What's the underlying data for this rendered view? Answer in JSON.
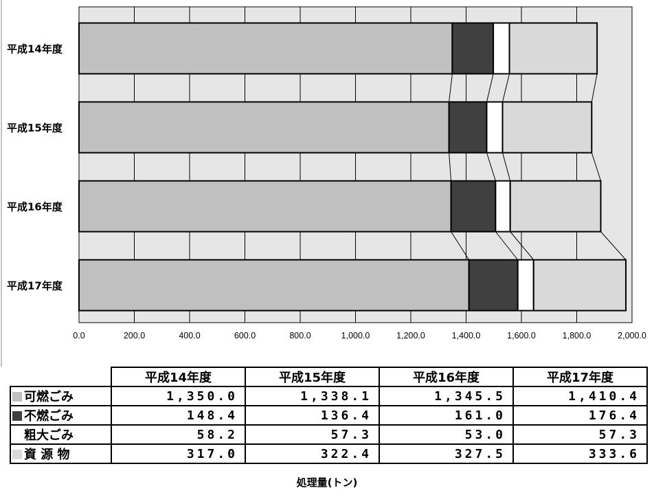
{
  "chart_data": {
    "type": "bar",
    "stacked": true,
    "orientation": "horizontal",
    "categories": [
      "平成14年度",
      "平成15年度",
      "平成16年度",
      "平成17年度"
    ],
    "series": [
      {
        "name": "可燃ごみ",
        "values": [
          1350.0,
          1338.1,
          1345.5,
          1410.4
        ],
        "color": "#c0c0c0"
      },
      {
        "name": "不燃ごみ",
        "values": [
          148.4,
          136.4,
          161.0,
          176.4
        ],
        "color": "#404040"
      },
      {
        "name": "粗大ごみ",
        "values": [
          58.2,
          57.3,
          53.0,
          57.3
        ],
        "color": "#ffffff"
      },
      {
        "name": "資 源 物",
        "values": [
          317.0,
          322.4,
          327.5,
          333.6
        ],
        "color": "#d9d9d9"
      }
    ],
    "xlim": [
      0,
      2000
    ],
    "xticks": [
      "0.0",
      "200.0",
      "400.0",
      "600.0",
      "800.0",
      "1,000.0",
      "1,200.0",
      "1,400.0",
      "1,600.0",
      "1,800.0",
      "2,000.0"
    ],
    "xlabel": "処理量(トン)",
    "grid": true,
    "plot_background": "#e6e6e6"
  },
  "table": {
    "headers": [
      "平成14年度",
      "平成15年度",
      "平成16年度",
      "平成17年度"
    ],
    "rows": [
      {
        "label": "可燃ごみ",
        "values": [
          "1,350.0",
          "1,338.1",
          "1,345.5",
          "1,410.4"
        ],
        "swatch": "#c0c0c0"
      },
      {
        "label": "不燃ごみ",
        "values": [
          "148.4",
          "136.4",
          "161.0",
          "176.4"
        ],
        "swatch": "#404040"
      },
      {
        "label": "粗大ごみ",
        "values": [
          "58.2",
          "57.3",
          "53.0",
          "57.3"
        ],
        "swatch": ""
      },
      {
        "label": "資 源 物",
        "values": [
          "317.0",
          "322.4",
          "327.5",
          "333.6"
        ],
        "swatch": "#d9d9d9"
      }
    ]
  }
}
